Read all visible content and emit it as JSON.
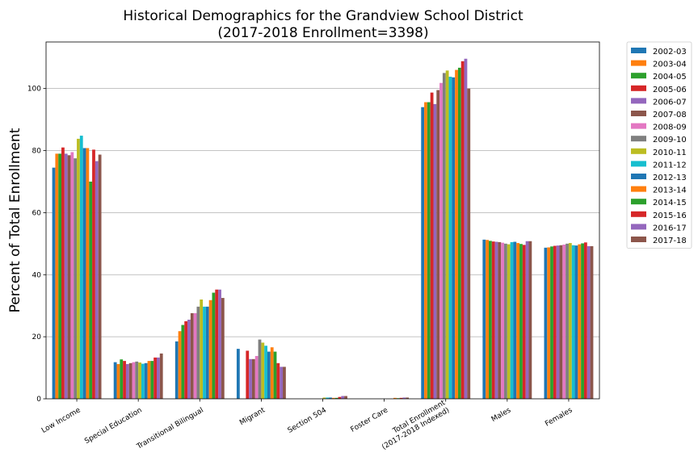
{
  "chart_data": {
    "type": "bar",
    "title_line1": "Historical Demographics for the Grandview School District",
    "title_line2": "(2017-2018 Enrollment=3398)",
    "ylabel": "Percent of Total Enrollment",
    "xlabel": "",
    "ylim": [
      0,
      115
    ],
    "yticks": [
      0,
      20,
      40,
      60,
      80,
      100
    ],
    "grid": "horizontal",
    "legend_position": "outside-right",
    "categories": [
      [
        "Low Income"
      ],
      [
        "Special Education"
      ],
      [
        "Transitional Bilingual"
      ],
      [
        "Migrant"
      ],
      [
        "Section 504"
      ],
      [
        "Foster Care"
      ],
      [
        "Total Enrollment",
        "(2017-2018 Indexed)"
      ],
      [
        "Males"
      ],
      [
        "Females"
      ]
    ],
    "series": [
      {
        "name": "2002-03",
        "color": "#1f77b4",
        "values": [
          74.5,
          11.8,
          18.5,
          16.1,
          null,
          null,
          94.0,
          51.3,
          48.7
        ]
      },
      {
        "name": "2003-04",
        "color": "#ff7f0e",
        "values": [
          79.0,
          11.2,
          21.8,
          null,
          null,
          null,
          95.6,
          51.2,
          48.8
        ]
      },
      {
        "name": "2004-05",
        "color": "#2ca02c",
        "values": [
          79.0,
          12.7,
          23.8,
          null,
          null,
          null,
          95.6,
          50.9,
          49.1
        ]
      },
      {
        "name": "2005-06",
        "color": "#d62728",
        "values": [
          81.0,
          12.2,
          25.0,
          15.5,
          null,
          null,
          98.7,
          50.7,
          49.3
        ]
      },
      {
        "name": "2006-07",
        "color": "#9467bd",
        "values": [
          79.0,
          11.2,
          25.5,
          12.8,
          null,
          null,
          95.0,
          50.6,
          49.4
        ]
      },
      {
        "name": "2007-08",
        "color": "#8c564b",
        "values": [
          78.5,
          11.5,
          27.6,
          12.8,
          null,
          null,
          99.5,
          50.5,
          49.5
        ]
      },
      {
        "name": "2008-09",
        "color": "#e377c2",
        "values": [
          79.5,
          11.8,
          27.6,
          13.8,
          null,
          null,
          101.8,
          50.3,
          49.7
        ]
      },
      {
        "name": "2009-10",
        "color": "#7f7f7f",
        "values": [
          77.5,
          12.0,
          29.7,
          19.1,
          null,
          null,
          105.0,
          50.0,
          50.0
        ]
      },
      {
        "name": "2010-11",
        "color": "#bcbd22",
        "values": [
          83.8,
          11.7,
          32.0,
          18.1,
          0.4,
          null,
          105.8,
          49.8,
          50.2
        ]
      },
      {
        "name": "2011-12",
        "color": "#17becf",
        "values": [
          84.8,
          11.3,
          29.7,
          17.1,
          0.4,
          null,
          103.8,
          50.5,
          49.5
        ]
      },
      {
        "name": "2012-13",
        "color": "#1f77b4",
        "values": [
          80.8,
          11.5,
          29.7,
          15.2,
          0.4,
          null,
          103.6,
          50.6,
          49.4
        ]
      },
      {
        "name": "2013-14",
        "color": "#ff7f0e",
        "values": [
          80.8,
          12.2,
          31.8,
          16.6,
          0.3,
          0.3,
          106.0,
          50.2,
          49.8
        ]
      },
      {
        "name": "2014-15",
        "color": "#2ca02c",
        "values": [
          70.0,
          12.2,
          34.2,
          15.2,
          0.3,
          0.2,
          106.7,
          49.9,
          50.1
        ]
      },
      {
        "name": "2015-16",
        "color": "#d62728",
        "values": [
          80.3,
          13.3,
          35.2,
          11.5,
          0.6,
          0.3,
          108.8,
          49.6,
          50.4
        ]
      },
      {
        "name": "2016-17",
        "color": "#9467bd",
        "values": [
          76.6,
          13.3,
          35.2,
          10.3,
          0.9,
          0.4,
          109.6,
          50.8,
          49.2
        ]
      },
      {
        "name": "2017-18",
        "color": "#8c564b",
        "values": [
          78.7,
          14.6,
          32.5,
          10.3,
          0.9,
          0.4,
          100.0,
          50.8,
          49.2
        ]
      }
    ]
  }
}
